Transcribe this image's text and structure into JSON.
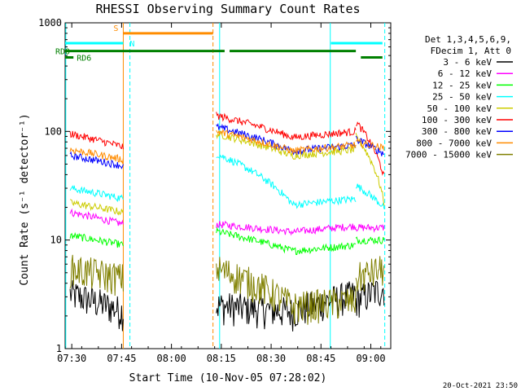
{
  "chart_data": {
    "type": "line",
    "title": "RHESSI Observing Summary Count Rates",
    "xlabel": "Start Time (10-Nov-05 07:28:02)",
    "ylabel": "Count Rate (s⁻¹ detector⁻¹)",
    "y_scale": "log",
    "ylim": [
      1,
      1000
    ],
    "xlim_minutes_after_0728": [
      0,
      98
    ],
    "x_ticks": [
      {
        "label": "07:30",
        "minute": 2
      },
      {
        "label": "07:45",
        "minute": 17
      },
      {
        "label": "08:00",
        "minute": 32
      },
      {
        "label": "08:15",
        "minute": 47
      },
      {
        "label": "08:30",
        "minute": 62
      },
      {
        "label": "08:45",
        "minute": 77
      },
      {
        "label": "09:00",
        "minute": 92
      }
    ],
    "y_ticks": [
      {
        "label": "1",
        "value": 1
      },
      {
        "label": "10",
        "value": 10
      },
      {
        "label": "100",
        "value": 100
      },
      {
        "label": "1000",
        "value": 1000
      }
    ],
    "legend_header": [
      "Det 1,3,4,5,6,9,",
      "FDecim 1, Att 0"
    ],
    "legend_position": "right",
    "series": [
      {
        "name": "3 - 6 keV",
        "color": "#000000",
        "levels": [
          3.2,
          2.2,
          2.5,
          3.2,
          2.8,
          3.6
        ]
      },
      {
        "name": "6 - 12 keV",
        "color": "#ff00ff",
        "levels": [
          18,
          14,
          14,
          13.5,
          13,
          13
        ]
      },
      {
        "name": "12 - 25 keV",
        "color": "#00ff00",
        "levels": [
          11,
          9,
          12,
          9,
          10,
          10
        ]
      },
      {
        "name": "25 - 50 keV",
        "color": "#00ffff",
        "levels": [
          30,
          24,
          62,
          24,
          32,
          20
        ]
      },
      {
        "name": "50 - 100 keV",
        "color": "#cccc00",
        "levels": [
          22,
          18,
          95,
          68,
          90,
          22
        ]
      },
      {
        "name": "100 - 300 keV",
        "color": "#ff0000",
        "levels": [
          95,
          72,
          140,
          100,
          122,
          38
        ]
      },
      {
        "name": "300 - 800 keV",
        "color": "#0000ff",
        "levels": [
          60,
          48,
          110,
          75,
          85,
          62
        ]
      },
      {
        "name": "800 - 7000 keV",
        "color": "#ff8c00",
        "levels": [
          68,
          55,
          100,
          75,
          80,
          70
        ]
      },
      {
        "name": "7000 - 15000 keV",
        "color": "#808000",
        "levels": [
          5.5,
          4.5,
          5.5,
          2.8,
          4.5,
          5.5
        ]
      }
    ],
    "segments": [
      {
        "start": 1.5,
        "end": 17.5
      },
      {
        "start": 45.5,
        "end": 87.5
      },
      {
        "start": 87.5,
        "end": 96
      }
    ],
    "flag_bars": [
      {
        "label": "S",
        "color": "#ff8c00",
        "level": 800,
        "ranges": [
          [
            17.5,
            44.5
          ]
        ]
      },
      {
        "label": "N",
        "color": "#00ffff",
        "level": 650,
        "ranges": [
          [
            0,
            17.5
          ],
          [
            80,
            95.5
          ]
        ]
      },
      {
        "label": "RD0",
        "color": "#008000",
        "level": 550,
        "ranges": [
          [
            0,
            44.5
          ],
          [
            44.5,
            48
          ],
          [
            49.5,
            87.5
          ]
        ]
      },
      {
        "label": "RD6",
        "color": "#008000",
        "level": 480,
        "ranges": [
          [
            0,
            2.5
          ],
          [
            89,
            95.5
          ]
        ]
      }
    ],
    "vertical_markers": [
      {
        "color": "#00ffff",
        "style": "solid",
        "minute": 0.2
      },
      {
        "color": "#ff8c00",
        "style": "solid",
        "minute": 17.5
      },
      {
        "color": "#00ffff",
        "style": "dashed",
        "minute": 19.5
      },
      {
        "color": "#ff8c00",
        "style": "dashed",
        "minute": 44.5
      },
      {
        "color": "#00ffff",
        "style": "solid",
        "minute": 46.5
      },
      {
        "color": "#00ffff",
        "style": "solid",
        "minute": 79.8
      },
      {
        "color": "#00ffff",
        "style": "dashed",
        "minute": 96.2
      }
    ],
    "grid": false
  },
  "footer_timestamp": "20-Oct-2021 23:50"
}
